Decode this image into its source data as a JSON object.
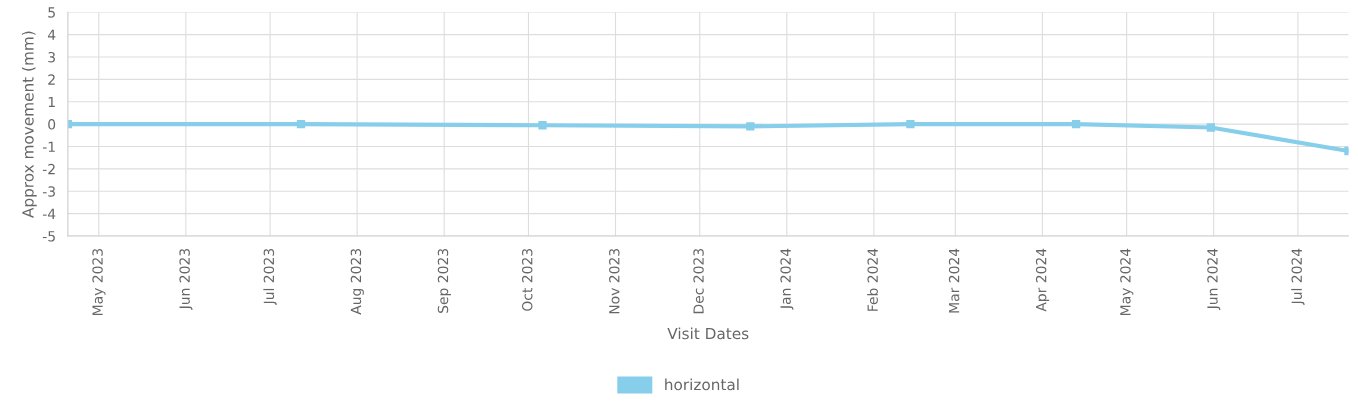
{
  "chart_data": {
    "type": "line",
    "xlabel": "Visit Dates",
    "ylabel": "Approx movement (mm)",
    "x": [
      "2023-04-20",
      "2023-07-12",
      "2023-10-06",
      "2023-12-19",
      "2024-02-14",
      "2024-04-13",
      "2024-05-31",
      "2024-07-19"
    ],
    "series": [
      {
        "name": "horizontal",
        "color": "#87ceeb",
        "values": [
          0,
          0,
          -0.05,
          -0.1,
          0,
          0,
          -0.15,
          -1.2
        ]
      }
    ],
    "xlim": [
      "2023-04-20",
      "2024-07-19"
    ],
    "xticks": [
      {
        "value": "2023-05-01",
        "label": "May 2023"
      },
      {
        "value": "2023-06-01",
        "label": "Jun 2023"
      },
      {
        "value": "2023-07-01",
        "label": "Jul 2023"
      },
      {
        "value": "2023-08-01",
        "label": "Aug 2023"
      },
      {
        "value": "2023-09-01",
        "label": "Sep 2023"
      },
      {
        "value": "2023-10-01",
        "label": "Oct 2023"
      },
      {
        "value": "2023-11-01",
        "label": "Nov 2023"
      },
      {
        "value": "2023-12-01",
        "label": "Dec 2023"
      },
      {
        "value": "2024-01-01",
        "label": "Jan 2024"
      },
      {
        "value": "2024-02-01",
        "label": "Feb 2024"
      },
      {
        "value": "2024-03-01",
        "label": "Mar 2024"
      },
      {
        "value": "2024-04-01",
        "label": "Apr 2024"
      },
      {
        "value": "2024-05-01",
        "label": "May 2024"
      },
      {
        "value": "2024-06-01",
        "label": "Jun 2024"
      },
      {
        "value": "2024-07-01",
        "label": "Jul 2024"
      }
    ],
    "ylim": [
      -5,
      5
    ],
    "yticks": [
      -5,
      -4,
      -3,
      -2,
      -1,
      0,
      1,
      2,
      3,
      4,
      5
    ],
    "grid": true,
    "legend": "bottom",
    "marker": "square",
    "line_style": "solid"
  }
}
